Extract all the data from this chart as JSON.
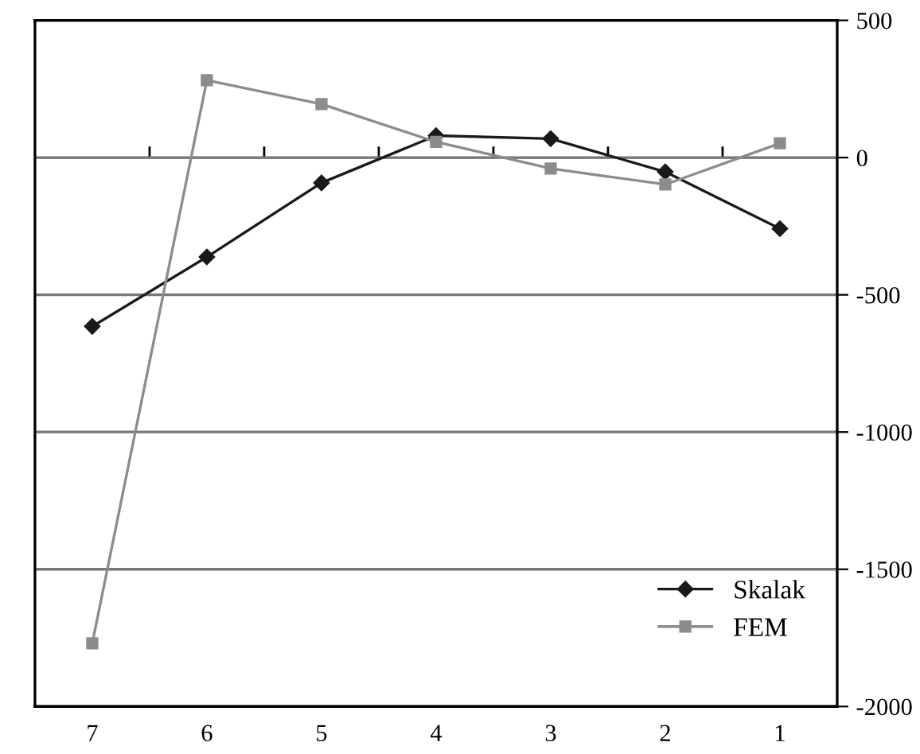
{
  "chart_data": {
    "type": "line",
    "categories": [
      "7",
      "6",
      "5",
      "4",
      "3",
      "2",
      "1"
    ],
    "series": [
      {
        "name": "Skalak",
        "color": "#1a1a1a",
        "marker": "diamond",
        "values": [
          -615,
          -362,
          -92,
          80,
          69,
          -52,
          -259
        ]
      },
      {
        "name": "FEM",
        "color": "#8c8c8c",
        "marker": "square",
        "values": [
          -1770,
          282,
          195,
          57,
          -40,
          -98,
          52
        ]
      }
    ],
    "ylim": [
      -2000,
      500
    ],
    "yticks": [
      -2000,
      -1500,
      -1000,
      -500,
      0,
      500
    ],
    "grid": "y",
    "legend": "bottom right"
  }
}
